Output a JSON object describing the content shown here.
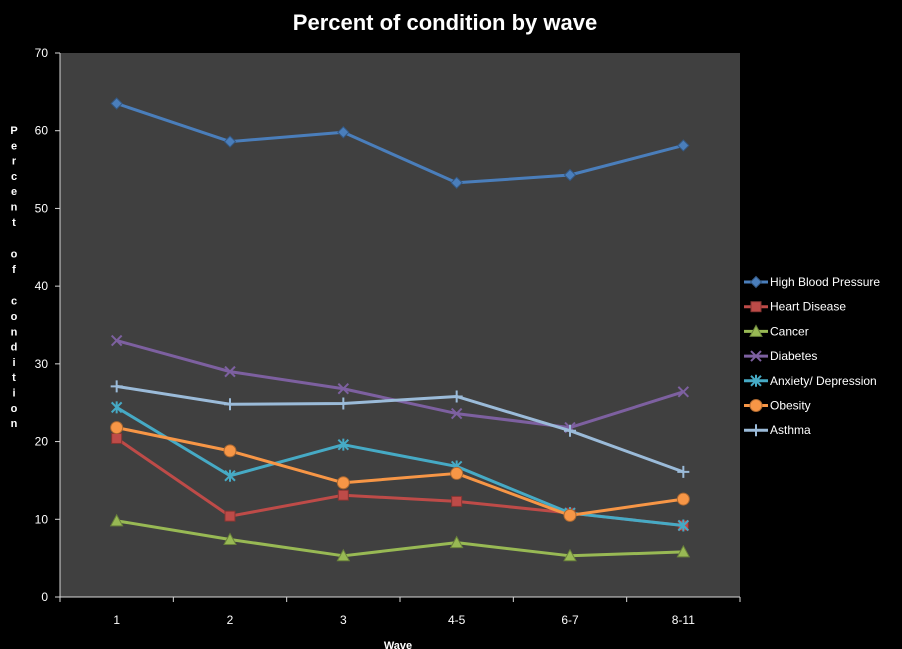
{
  "chart_data": {
    "type": "line",
    "title": "Percent of condition by wave",
    "xlabel": "Wave",
    "ylabel": "Percent of condition",
    "categories": [
      "1",
      "2",
      "3",
      "4-5",
      "6-7",
      "8-11"
    ],
    "ylim": [
      0,
      70
    ],
    "yticks": [
      0,
      10,
      20,
      30,
      40,
      50,
      60,
      70
    ],
    "grid": false,
    "legend_position": "right",
    "plot_background": "#404040",
    "background": "#000000",
    "series": [
      {
        "name": "High Blood Pressure",
        "values": [
          63.5,
          58.6,
          59.8,
          53.3,
          54.3,
          58.1
        ],
        "color": "#4a7ebb",
        "marker": "diamond"
      },
      {
        "name": "Heart Disease",
        "values": [
          20.4,
          10.4,
          13.1,
          12.3,
          10.8,
          9.2
        ],
        "color": "#be4b48",
        "marker": "square"
      },
      {
        "name": "Cancer",
        "values": [
          9.8,
          7.4,
          5.3,
          7.0,
          5.3,
          5.8
        ],
        "color": "#98b954",
        "marker": "triangle"
      },
      {
        "name": "Diabetes",
        "values": [
          33.0,
          29.0,
          26.8,
          23.6,
          21.8,
          26.4
        ],
        "color": "#7d60a0",
        "marker": "x"
      },
      {
        "name": "Anxiety/ Depression",
        "values": [
          24.4,
          15.6,
          19.6,
          16.8,
          10.8,
          9.2
        ],
        "color": "#46aac5",
        "marker": "star"
      },
      {
        "name": "Obesity",
        "values": [
          21.8,
          18.8,
          14.7,
          15.9,
          10.5,
          12.6
        ],
        "color": "#f79646",
        "marker": "circle"
      },
      {
        "name": "Asthma",
        "values": [
          27.1,
          24.8,
          24.9,
          25.8,
          21.4,
          16.1
        ],
        "color": "#9bbbd9",
        "marker": "plus"
      }
    ]
  }
}
